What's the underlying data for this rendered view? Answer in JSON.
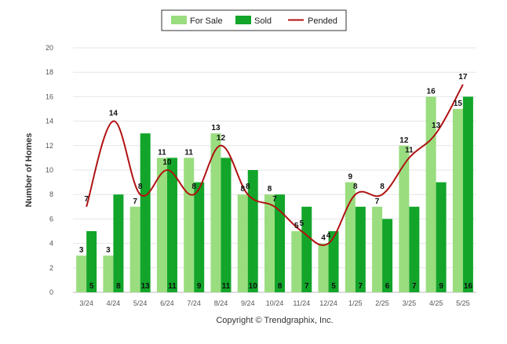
{
  "chart_data": {
    "type": "bar",
    "ylabel": "Number of Homes",
    "ylim": [
      0,
      20
    ],
    "yticks": [
      0,
      2,
      4,
      6,
      8,
      10,
      12,
      14,
      16,
      18,
      20
    ],
    "grid": true,
    "legend_position": "top-center",
    "categories": [
      "3/24",
      "4/24",
      "5/24",
      "6/24",
      "7/24",
      "8/24",
      "9/24",
      "10/24",
      "11/24",
      "12/24",
      "1/25",
      "2/25",
      "3/25",
      "4/25",
      "5/25"
    ],
    "series": [
      {
        "name": "For Sale",
        "kind": "bar",
        "color": "#99dd7f",
        "values": [
          3,
          3,
          7,
          11,
          11,
          13,
          8,
          8,
          5,
          4,
          9,
          7,
          12,
          16,
          15
        ]
      },
      {
        "name": "Sold",
        "kind": "bar",
        "color": "#12a52a",
        "values": [
          5,
          8,
          13,
          11,
          9,
          11,
          10,
          8,
          7,
          5,
          7,
          6,
          7,
          9,
          16
        ]
      },
      {
        "name": "Pended",
        "kind": "line",
        "color": "#b01212",
        "values": [
          7,
          14,
          8,
          10,
          8,
          12,
          8,
          7,
          5,
          4,
          8,
          8,
          11,
          13,
          17
        ]
      }
    ]
  },
  "footer": {
    "copyright": "Copyright © Trendgraphix, Inc."
  }
}
